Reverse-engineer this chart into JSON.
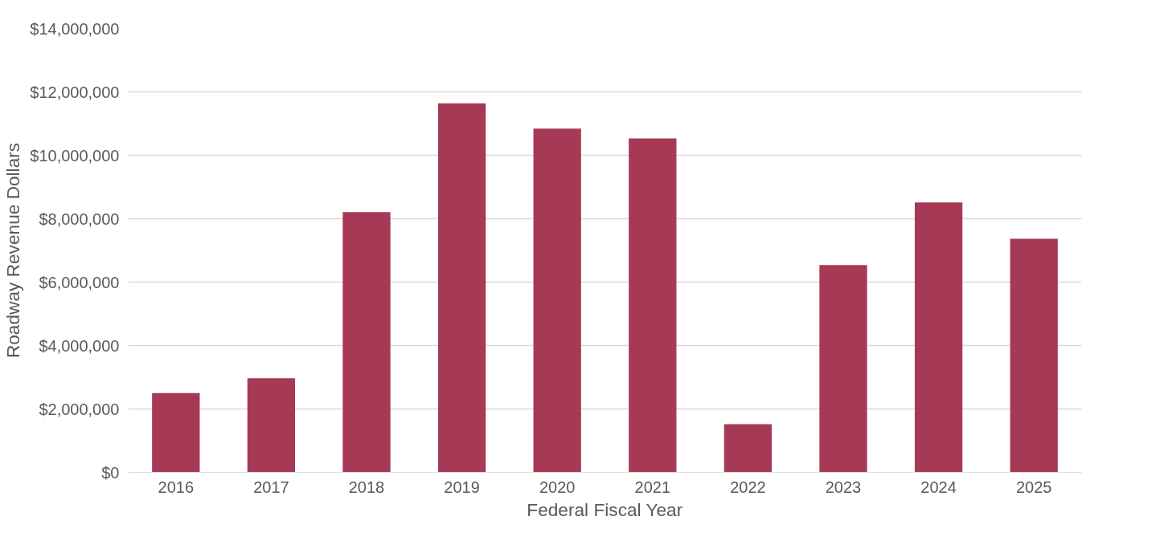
{
  "chart_data": {
    "type": "bar",
    "xlabel": "Federal Fiscal Year",
    "ylabel": "Roadway Revenue Dollars",
    "categories": [
      "2016",
      "2017",
      "2018",
      "2019",
      "2020",
      "2021",
      "2022",
      "2023",
      "2024",
      "2025"
    ],
    "values": [
      2500000,
      2970000,
      8210000,
      11640000,
      10840000,
      10530000,
      1520000,
      6540000,
      8510000,
      7370000
    ],
    "color": "#a63a56",
    "ylim": [
      0,
      14000000
    ],
    "yticks": [
      {
        "value": 0,
        "label": "$0"
      },
      {
        "value": 2000000,
        "label": "$2,000,000"
      },
      {
        "value": 4000000,
        "label": "$4,000,000"
      },
      {
        "value": 6000000,
        "label": "$6,000,000"
      },
      {
        "value": 8000000,
        "label": "$8,000,000"
      },
      {
        "value": 10000000,
        "label": "$10,000,000"
      },
      {
        "value": 12000000,
        "label": "$12,000,000"
      },
      {
        "value": 14000000,
        "label": "$14,000,000"
      }
    ],
    "grid": "y"
  }
}
